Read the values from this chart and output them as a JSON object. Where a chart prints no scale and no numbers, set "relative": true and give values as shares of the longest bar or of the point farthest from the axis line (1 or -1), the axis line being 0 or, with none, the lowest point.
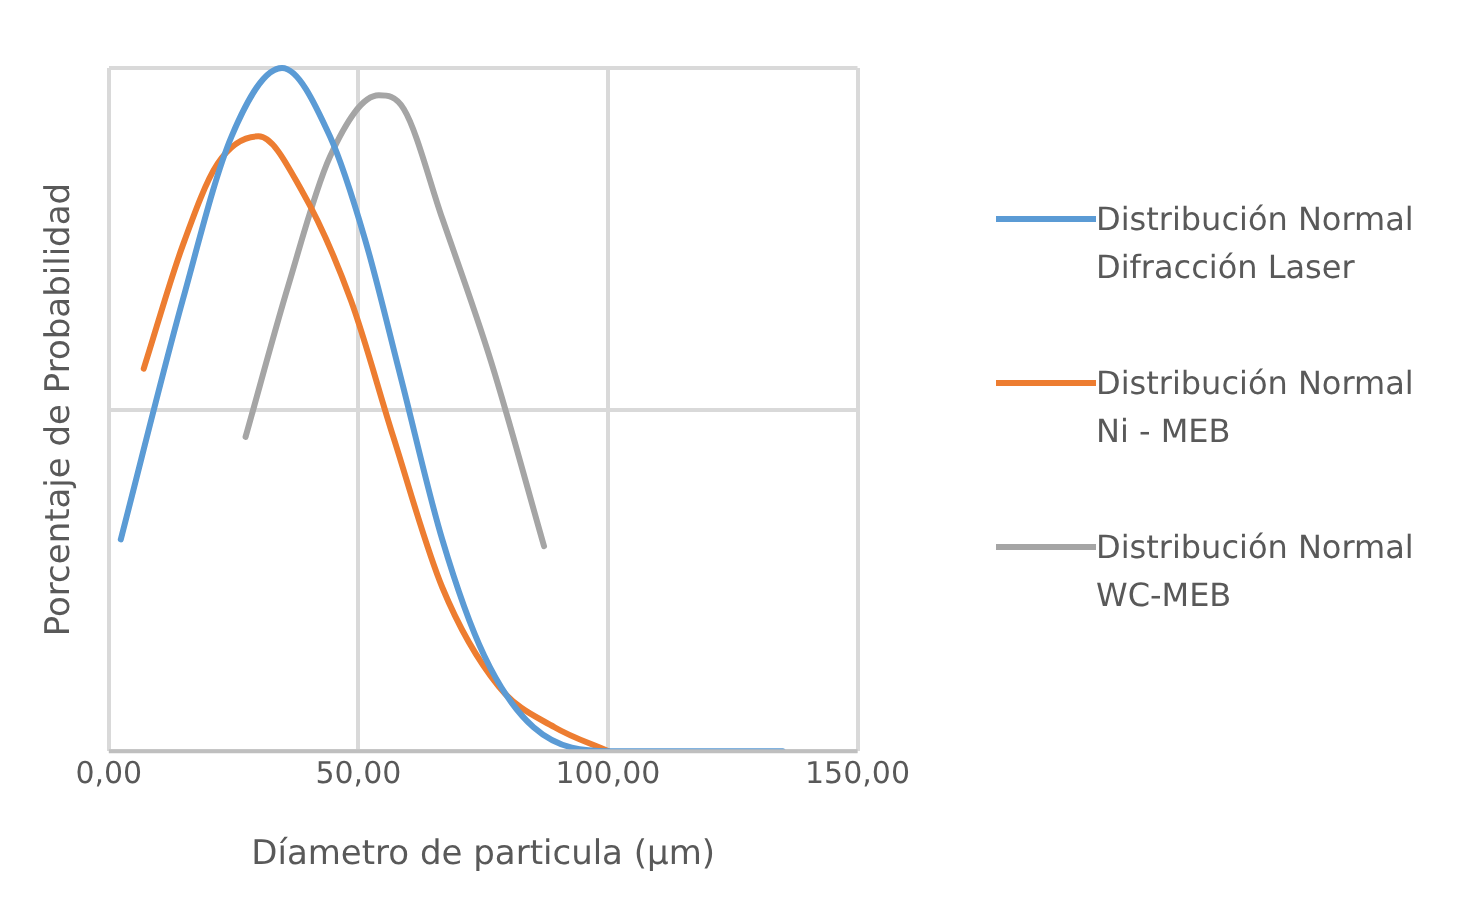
{
  "chart_data": {
    "type": "line",
    "xlabel": "Díametro de particula (µm)",
    "ylabel": "Porcentaje de Probabilidad",
    "relative": true,
    "xlim": [
      0,
      150
    ],
    "xticks": [
      {
        "value": 0,
        "label": "0,00"
      },
      {
        "value": 50,
        "label": "50,00"
      },
      {
        "value": 100,
        "label": "100,00"
      },
      {
        "value": 150,
        "label": "150,00"
      }
    ],
    "grid": true,
    "legend": "right",
    "marker": "none",
    "line_style": "solid",
    "series": [
      {
        "name": "Distribución Normal Difracción Laser",
        "color": "#5b9bd5",
        "x": [
          2.4,
          14.8,
          24.6,
          34.7,
          44.3,
          51.3,
          58.4,
          66.8,
          75.2,
          85.1,
          100.4,
          113.9,
          135
        ],
        "values": [
          0.31,
          0.66,
          0.9,
          1.0,
          0.9,
          0.75,
          0.55,
          0.31,
          0.14,
          0.035,
          0.0,
          0.0,
          0.0
        ]
      },
      {
        "name": "Distribución Normal Ni - MEB",
        "color": "#ed7d31",
        "x": [
          7.0,
          14.8,
          21.8,
          30,
          38.7,
          48.5,
          57,
          66.8,
          78.1,
          89.3,
          100.1
        ],
        "values": [
          0.56,
          0.74,
          0.86,
          0.9,
          0.82,
          0.66,
          0.46,
          0.24,
          0.095,
          0.035,
          0.0
        ]
      },
      {
        "name": "Distribución Normal WC-MEB",
        "color": "#a5a5a5",
        "x": [
          27.4,
          35.9,
          44.3,
          54.1,
          59.1,
          66.8,
          76.6,
          87.2
        ],
        "values": [
          0.46,
          0.68,
          0.87,
          0.96,
          0.94,
          0.78,
          0.57,
          0.3
        ]
      }
    ]
  }
}
